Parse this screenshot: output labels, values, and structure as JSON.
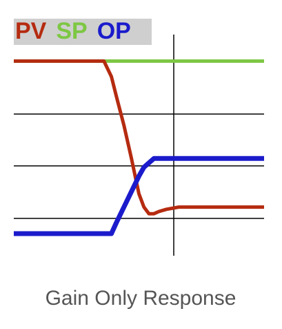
{
  "chart_data": {
    "type": "line",
    "title": "Gain Only Response",
    "x": [
      0,
      36,
      39,
      41,
      44,
      47,
      50,
      52,
      54,
      56,
      58,
      61,
      66,
      100
    ],
    "xlim": [
      0,
      100
    ],
    "ylim": [
      0,
      100
    ],
    "series": [
      {
        "name": "PV",
        "color": "#b52b10",
        "values": [
          88,
          88,
          81,
          72,
          59,
          44,
          28,
          22,
          19,
          19,
          20,
          21,
          22,
          22
        ]
      },
      {
        "name": "SP",
        "color": "#7dc743",
        "values": [
          88,
          88,
          88,
          88,
          88,
          88,
          88,
          88,
          88,
          88,
          88,
          88,
          88,
          88
        ]
      },
      {
        "name": "OP",
        "color": "#1b1bcc",
        "values": [
          10,
          10,
          10,
          15,
          22,
          29,
          36,
          40,
          42,
          44,
          44,
          44,
          44,
          44
        ]
      }
    ]
  }
}
